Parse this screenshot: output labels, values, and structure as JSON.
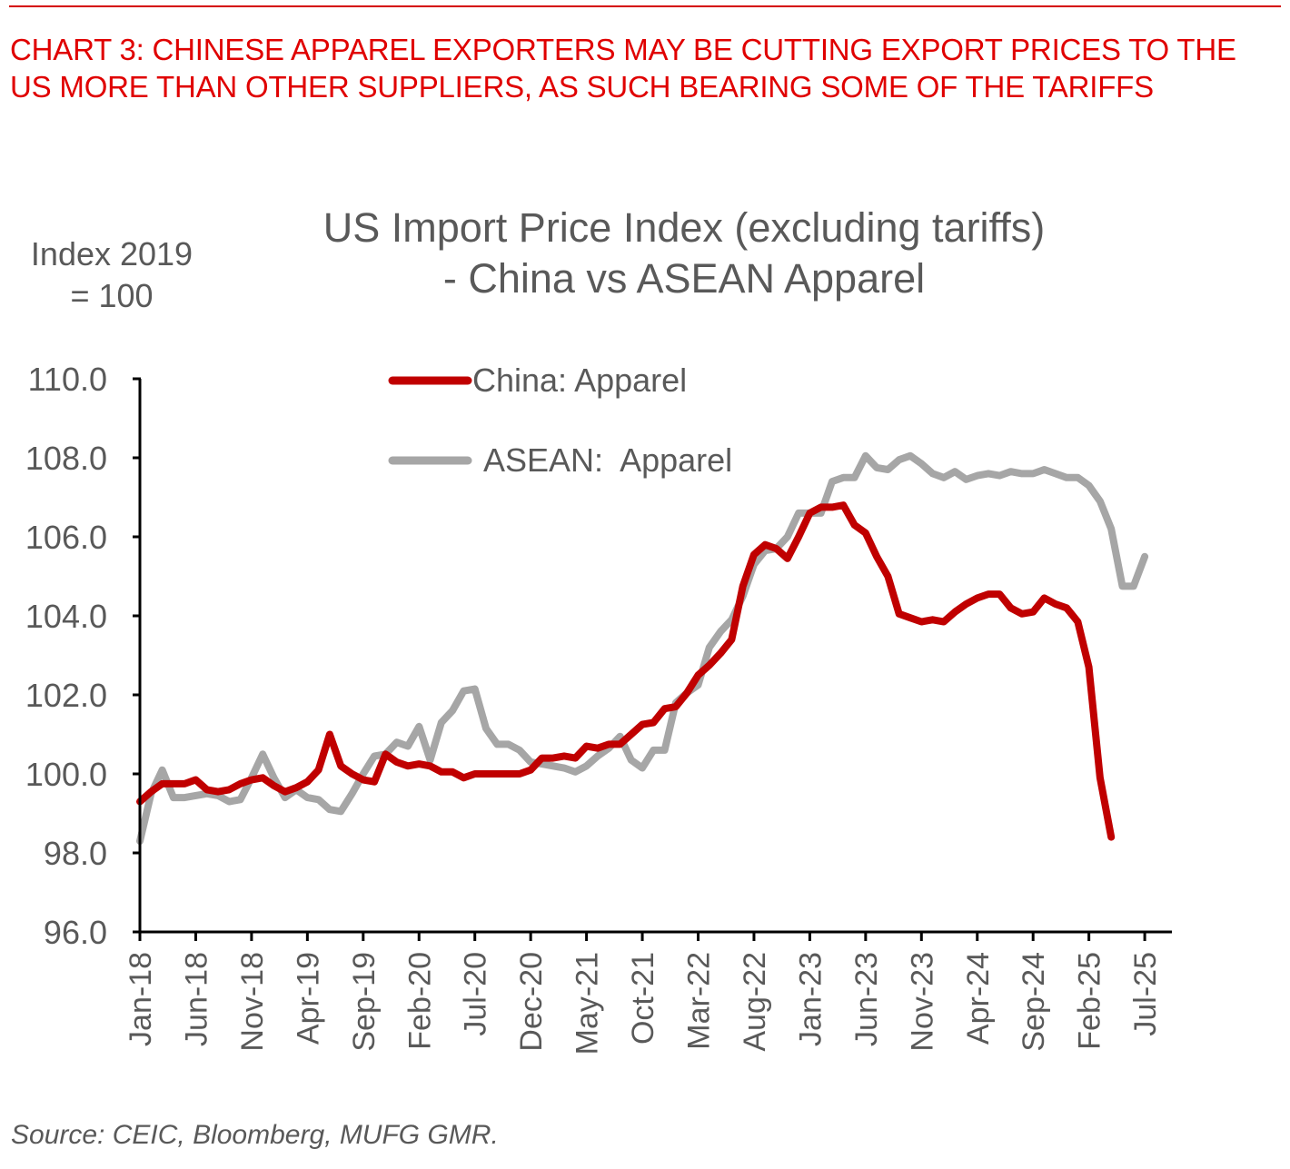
{
  "header": {
    "headline": "CHART 3: CHINESE APPAREL EXPORTERS MAY BE CUTTING EXPORT PRICES TO THE US MORE THAN OTHER SUPPLIERS, AS SUCH BEARING SOME OF THE TARIFFS"
  },
  "footer": {
    "source": "Source: CEIC, Bloomberg, MUFG GMR."
  },
  "colors": {
    "headline": "#e00000",
    "china": "#c00000",
    "asean": "#a6a6a6",
    "text": "#595959",
    "axis": "#000000"
  },
  "chart_data": {
    "type": "line",
    "title": [
      "US Import Price Index (excluding tariffs)",
      "- China vs ASEAN Apparel"
    ],
    "ylabel": [
      "Index 2019",
      "= 100"
    ],
    "xlabel": "",
    "ylim": [
      96,
      110
    ],
    "yticks": [
      "96.0",
      "98.0",
      "100.0",
      "102.0",
      "104.0",
      "106.0",
      "108.0",
      "110.0"
    ],
    "xtick_labels": [
      "Jan-18",
      "Jun-18",
      "Nov-18",
      "Apr-19",
      "Sep-19",
      "Feb-20",
      "Jul-20",
      "Dec-20",
      "May-21",
      "Oct-21",
      "Mar-22",
      "Aug-22",
      "Jan-23",
      "Jun-23",
      "Nov-23",
      "Apr-24",
      "Sep-24",
      "Feb-25",
      "Jul-25"
    ],
    "x_start": "Jan-18",
    "x_frequency": "monthly",
    "legend": {
      "placement": "top-center",
      "entries": [
        "China: Apparel",
        "ASEAN:  Apparel"
      ]
    },
    "grid": false,
    "series": [
      {
        "name": "China: Apparel",
        "color": "#c00000",
        "values": [
          99.3,
          99.55,
          99.75,
          99.75,
          99.75,
          99.85,
          99.6,
          99.55,
          99.6,
          99.75,
          99.85,
          99.9,
          99.7,
          99.55,
          99.65,
          99.8,
          100.1,
          101.0,
          100.2,
          100.0,
          99.85,
          99.8,
          100.5,
          100.3,
          100.2,
          100.25,
          100.2,
          100.05,
          100.05,
          99.9,
          100.0,
          100.0,
          100.0,
          100.0,
          100.0,
          100.1,
          100.4,
          100.4,
          100.45,
          100.4,
          100.7,
          100.65,
          100.75,
          100.75,
          101.0,
          101.25,
          101.3,
          101.65,
          101.7,
          102.05,
          102.5,
          102.75,
          103.05,
          103.4,
          104.75,
          105.55,
          105.8,
          105.7,
          105.45,
          106.0,
          106.6,
          106.75,
          106.75,
          106.8,
          106.3,
          106.1,
          105.5,
          105.0,
          104.05,
          103.95,
          103.85,
          103.9,
          103.85,
          104.1,
          104.3,
          104.45,
          104.55,
          104.55,
          104.2,
          104.05,
          104.1,
          104.45,
          104.3,
          104.2,
          103.85,
          102.7,
          99.9,
          98.4
        ]
      },
      {
        "name": "ASEAN:  Apparel",
        "color": "#a6a6a6",
        "values": [
          98.3,
          99.5,
          100.1,
          99.4,
          99.4,
          99.45,
          99.5,
          99.45,
          99.3,
          99.35,
          99.9,
          100.5,
          99.9,
          99.4,
          99.6,
          99.4,
          99.35,
          99.1,
          99.05,
          99.5,
          100.0,
          100.45,
          100.5,
          100.8,
          100.7,
          101.2,
          100.35,
          101.3,
          101.6,
          102.1,
          102.15,
          101.15,
          100.75,
          100.75,
          100.6,
          100.3,
          100.25,
          100.2,
          100.15,
          100.05,
          100.2,
          100.45,
          100.65,
          100.95,
          100.35,
          100.15,
          100.6,
          100.6,
          101.8,
          102.05,
          102.25,
          103.2,
          103.6,
          103.9,
          104.5,
          105.3,
          105.65,
          105.7,
          106.0,
          106.6,
          106.6,
          106.6,
          107.4,
          107.5,
          107.5,
          108.05,
          107.75,
          107.7,
          107.95,
          108.05,
          107.85,
          107.6,
          107.5,
          107.65,
          107.45,
          107.55,
          107.6,
          107.55,
          107.65,
          107.6,
          107.6,
          107.7,
          107.6,
          107.5,
          107.5,
          107.3,
          106.9,
          106.2,
          104.75,
          104.75,
          105.5
        ]
      }
    ]
  }
}
